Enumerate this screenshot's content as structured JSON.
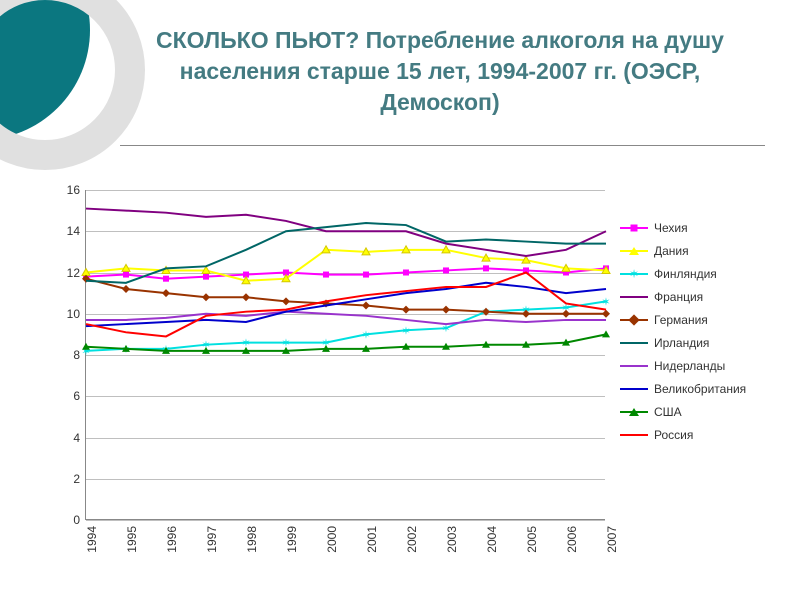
{
  "title": "СКОЛЬКО ПЬЮТ? Потребление алкоголя на душу населения старше 15 лет, 1994-2007 гг. (ОЭСР, Демоскоп)",
  "chart": {
    "type": "line",
    "background": "#ffffff",
    "grid_color": "#bfbfbf",
    "axis_color": "#888888",
    "title_color": "#447b82",
    "title_fontsize": 23,
    "tick_fontsize": 12,
    "legend_fontsize": 12,
    "xlim": [
      1994,
      2007
    ],
    "ylim": [
      0,
      16
    ],
    "ytick_step": 2,
    "years": [
      1994,
      1995,
      1996,
      1997,
      1998,
      1999,
      2000,
      2001,
      2002,
      2003,
      2004,
      2005,
      2006,
      2007
    ],
    "series": [
      {
        "name": "Чехия",
        "color": "#ff00ff",
        "marker": "square",
        "values": [
          11.8,
          11.9,
          11.7,
          11.8,
          11.9,
          12.0,
          11.9,
          11.9,
          12.0,
          12.1,
          12.2,
          12.1,
          12.0,
          12.2
        ]
      },
      {
        "name": "Дания",
        "color": "#ffff00",
        "marker": "triangle",
        "stroke": "#d4c700",
        "values": [
          12.0,
          12.2,
          12.1,
          12.1,
          11.6,
          11.7,
          13.1,
          13.0,
          13.1,
          13.1,
          12.7,
          12.6,
          12.2,
          12.1
        ]
      },
      {
        "name": "Финляндия",
        "color": "#00e0e0",
        "marker": "star",
        "values": [
          8.2,
          8.3,
          8.3,
          8.5,
          8.6,
          8.6,
          8.6,
          9.0,
          9.2,
          9.3,
          10.1,
          10.2,
          10.3,
          10.6
        ]
      },
      {
        "name": "Франция",
        "color": "#800080",
        "marker": "none",
        "values": [
          15.1,
          15.0,
          14.9,
          14.7,
          14.8,
          14.5,
          14.0,
          14.0,
          14.0,
          13.4,
          13.1,
          12.8,
          13.1,
          14.0
        ]
      },
      {
        "name": "Германия",
        "color": "#993300",
        "marker": "diamond",
        "values": [
          11.7,
          11.2,
          11.0,
          10.8,
          10.8,
          10.6,
          10.5,
          10.4,
          10.2,
          10.2,
          10.1,
          10.0,
          10.0,
          10.0
        ]
      },
      {
        "name": "Ирландия",
        "color": "#006666",
        "marker": "none",
        "values": [
          11.6,
          11.5,
          12.2,
          12.3,
          13.1,
          14.0,
          14.2,
          14.4,
          14.3,
          13.5,
          13.6,
          13.5,
          13.4,
          13.4
        ]
      },
      {
        "name": "Нидерланды",
        "color": "#9933cc",
        "marker": "none",
        "values": [
          9.7,
          9.7,
          9.8,
          10.0,
          9.9,
          10.1,
          10.0,
          9.9,
          9.7,
          9.5,
          9.7,
          9.6,
          9.7,
          9.7
        ]
      },
      {
        "name": "Великобритания",
        "color": "#0000cc",
        "marker": "none",
        "values": [
          9.4,
          9.5,
          9.6,
          9.7,
          9.6,
          10.1,
          10.4,
          10.7,
          11.0,
          11.2,
          11.5,
          11.3,
          11.0,
          11.2
        ]
      },
      {
        "name": "США",
        "color": "#008800",
        "marker": "triangle",
        "values": [
          8.4,
          8.3,
          8.2,
          8.2,
          8.2,
          8.2,
          8.3,
          8.3,
          8.4,
          8.4,
          8.5,
          8.5,
          8.6,
          9.0
        ]
      },
      {
        "name": "Россия",
        "color": "#ff0000",
        "marker": "none",
        "values": [
          9.5,
          9.1,
          8.9,
          9.9,
          10.1,
          10.2,
          10.6,
          10.9,
          11.1,
          11.3,
          11.3,
          12.0,
          10.5,
          10.2
        ]
      }
    ]
  }
}
